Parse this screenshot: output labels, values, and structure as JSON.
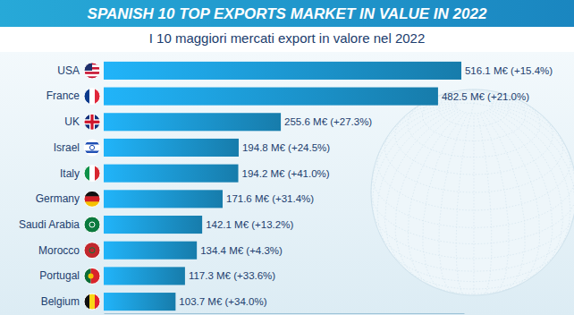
{
  "chart_data": {
    "type": "bar",
    "title": "SPANISH 10 TOP EXPORTS MARKET IN VALUE IN 2022",
    "subtitle": "I 10 maggiori mercati export in valore nel 2022",
    "orientation": "horizontal",
    "categories": [
      "USA",
      "France",
      "UK",
      "Israel",
      "Italy",
      "Germany",
      "Saudi Arabia",
      "Morocco",
      "Portugal",
      "Belgium"
    ],
    "values": [
      516.1,
      482.5,
      255.6,
      194.8,
      194.2,
      171.6,
      142.1,
      134.4,
      117.3,
      103.7
    ],
    "value_labels": [
      "516.1 M€ (+15.4%)",
      "482.5 M€ (+21.0%)",
      "255.6 M€ (+27.3%)",
      "194.8 M€ (+24.5%)",
      "194.2 M€ (+41.0%)",
      "171.6 M€ (+31.4%)",
      "142.1 M€ (+13.2%)",
      "134.4 M€ (+4.3%)",
      "117.3 M€ (+33.6%)",
      "103.7 M€ (+34.0%)"
    ],
    "data_labels": true,
    "tick_labels": "y",
    "color": "#1a8cc2",
    "xlim": [
      0,
      520
    ],
    "grid": false
  }
}
